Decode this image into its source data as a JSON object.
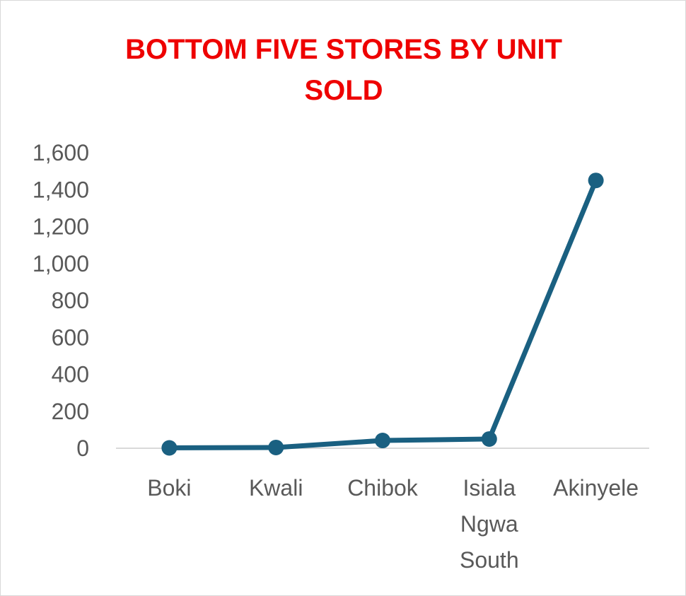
{
  "chart_data": {
    "type": "line",
    "title": "BOTTOM FIVE STORES BY UNIT SOLD",
    "categories": [
      "Boki",
      "Kwali",
      "Chibok",
      "Isiala Ngwa South",
      "Akinyele"
    ],
    "category_lines": [
      [
        "Boki"
      ],
      [
        "Kwali"
      ],
      [
        "Chibok"
      ],
      [
        "Isiala",
        "Ngwa",
        "South"
      ],
      [
        "Akinyele"
      ]
    ],
    "series": [
      {
        "values": [
          2,
          4,
          42,
          50,
          1450
        ]
      }
    ],
    "ylim": [
      0,
      1600
    ],
    "yticks": [
      0,
      200,
      400,
      600,
      800,
      1000,
      1200,
      1400,
      1600
    ],
    "ytick_labels": [
      "0",
      "200",
      "400",
      "600",
      "800",
      "1,000",
      "1,200",
      "1,400",
      "1,600"
    ],
    "grid": false,
    "legend": "none",
    "colors": {
      "line": "#1a6081",
      "title": "#ee0000",
      "axis": "#d9d9d9",
      "ticks": "#595959"
    }
  }
}
